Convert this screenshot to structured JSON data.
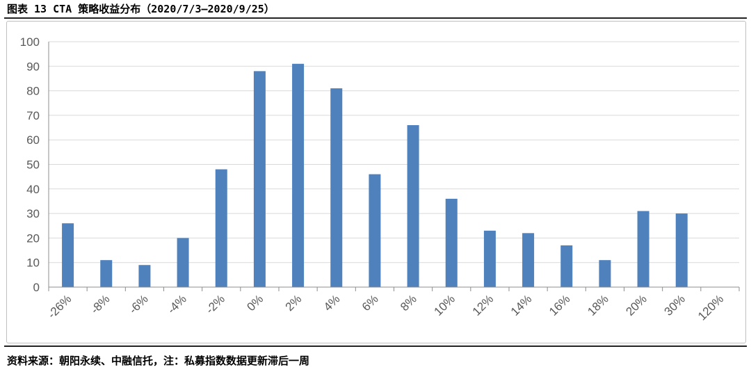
{
  "figure": {
    "title": "图表 13  CTA 策略收益分布（2020/7/3—2020/9/25）",
    "source": "资料来源：朝阳永续、中融信托，注：私募指数数据更新滞后一周"
  },
  "colors": {
    "bar": "#4f81bd",
    "grid": "#d9d9d9",
    "axis": "#8c8c8c",
    "text": "#595959"
  },
  "chart_data": {
    "type": "bar",
    "categories": [
      "-26%",
      "-8%",
      "-6%",
      "-4%",
      "-2%",
      "0%",
      "2%",
      "4%",
      "6%",
      "8%",
      "10%",
      "12%",
      "14%",
      "16%",
      "18%",
      "20%",
      "30%",
      "120%"
    ],
    "values": [
      26,
      11,
      9,
      20,
      48,
      88,
      91,
      81,
      46,
      66,
      36,
      23,
      22,
      17,
      11,
      31,
      30,
      0
    ],
    "ylim": [
      0,
      100
    ],
    "yticks": [
      0,
      10,
      20,
      30,
      40,
      50,
      60,
      70,
      80,
      90,
      100
    ],
    "grid": true,
    "xlabel": "",
    "ylabel": ""
  }
}
